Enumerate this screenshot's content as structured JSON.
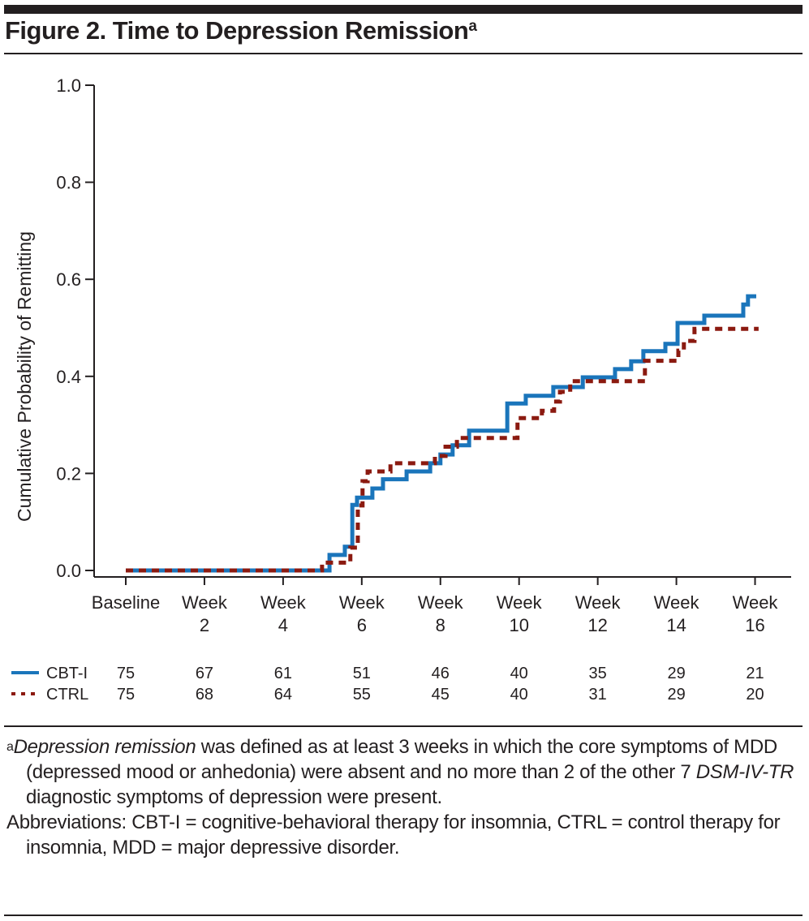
{
  "figure": {
    "title": "Figure 2. Time to Depression Remission",
    "title_superscript": "a"
  },
  "chart_data": {
    "type": "line",
    "subtype": "step (cumulative incidence / Kaplan-Meier)",
    "title": "Figure 2. Time to Depression Remission",
    "xlabel": "",
    "ylabel": "Cumulative Probability of Remitting",
    "xlim": [
      0,
      16.5
    ],
    "ylim": [
      0,
      1.0
    ],
    "x_ticks": [
      0,
      2,
      4,
      6,
      8,
      10,
      12,
      14,
      16
    ],
    "x_tick_labels": [
      [
        "Baseline",
        ""
      ],
      [
        "Week",
        "2"
      ],
      [
        "Week",
        "4"
      ],
      [
        "Week",
        "6"
      ],
      [
        "Week",
        "8"
      ],
      [
        "Week",
        "10"
      ],
      [
        "Week",
        "12"
      ],
      [
        "Week",
        "14"
      ],
      [
        "Week",
        "16"
      ]
    ],
    "y_ticks": [
      0.0,
      0.2,
      0.4,
      0.6,
      0.8,
      1.0
    ],
    "y_tick_labels": [
      "0.0",
      "0.2",
      "0.4",
      "0.6",
      "0.8",
      "1.0"
    ],
    "grid": false,
    "legend_position": "bottom-left (within number-at-risk table)",
    "series": [
      {
        "name": "CBT-I",
        "color": "#1a75bb",
        "style": "solid",
        "steps": [
          [
            0,
            0
          ],
          [
            5.18,
            0.032
          ],
          [
            5.57,
            0.049
          ],
          [
            5.76,
            0.135
          ],
          [
            5.88,
            0.15
          ],
          [
            6.27,
            0.169
          ],
          [
            6.54,
            0.188
          ],
          [
            7.14,
            0.204
          ],
          [
            7.74,
            0.221
          ],
          [
            8.0,
            0.239
          ],
          [
            8.31,
            0.258
          ],
          [
            8.73,
            0.288
          ],
          [
            9.7,
            0.344
          ],
          [
            10.17,
            0.36
          ],
          [
            10.87,
            0.378
          ],
          [
            11.62,
            0.398
          ],
          [
            12.44,
            0.415
          ],
          [
            12.85,
            0.431
          ],
          [
            13.16,
            0.452
          ],
          [
            13.72,
            0.467
          ],
          [
            14.03,
            0.51
          ],
          [
            14.71,
            0.525
          ],
          [
            15.7,
            0.548
          ],
          [
            15.82,
            0.565
          ]
        ],
        "end_x": 16.03
      },
      {
        "name": "CTRL",
        "color": "#8b1a10",
        "style": "dashed",
        "steps": [
          [
            0,
            0
          ],
          [
            4.99,
            0.016
          ],
          [
            5.71,
            0.047
          ],
          [
            5.9,
            0.134
          ],
          [
            6.02,
            0.184
          ],
          [
            6.15,
            0.204
          ],
          [
            6.73,
            0.221
          ],
          [
            7.86,
            0.236
          ],
          [
            8.13,
            0.255
          ],
          [
            8.42,
            0.273
          ],
          [
            9.96,
            0.314
          ],
          [
            10.58,
            0.329
          ],
          [
            10.89,
            0.348
          ],
          [
            11.04,
            0.368
          ],
          [
            11.3,
            0.39
          ],
          [
            13.2,
            0.432
          ],
          [
            14.05,
            0.453
          ],
          [
            14.19,
            0.473
          ],
          [
            14.46,
            0.498
          ]
        ],
        "end_x": 16.09
      }
    ],
    "number_at_risk": {
      "time_points": [
        0,
        2,
        4,
        6,
        8,
        10,
        12,
        14,
        16
      ],
      "rows": [
        {
          "name": "CBT-I",
          "values": [
            75,
            67,
            61,
            51,
            46,
            40,
            35,
            29,
            21
          ]
        },
        {
          "name": "CTRL",
          "values": [
            75,
            68,
            64,
            55,
            45,
            40,
            31,
            29,
            20
          ]
        }
      ]
    }
  },
  "footnotes": {
    "note_a": {
      "marker": "a",
      "italic_lead": "Depression remission",
      "text_1": " was defined as at least 3 weeks in which the core symptoms of MDD (depressed mood or anhedonia) were absent and no more than 2 of the other 7 ",
      "italic_mid": "DSM-IV-TR",
      "text_2": " diagnostic symptoms of depression were present."
    },
    "abbreviations": "Abbreviations: CBT-I = cognitive-behavioral therapy for insomnia, CTRL = control therapy for insomnia, MDD = major depressive disorder."
  }
}
